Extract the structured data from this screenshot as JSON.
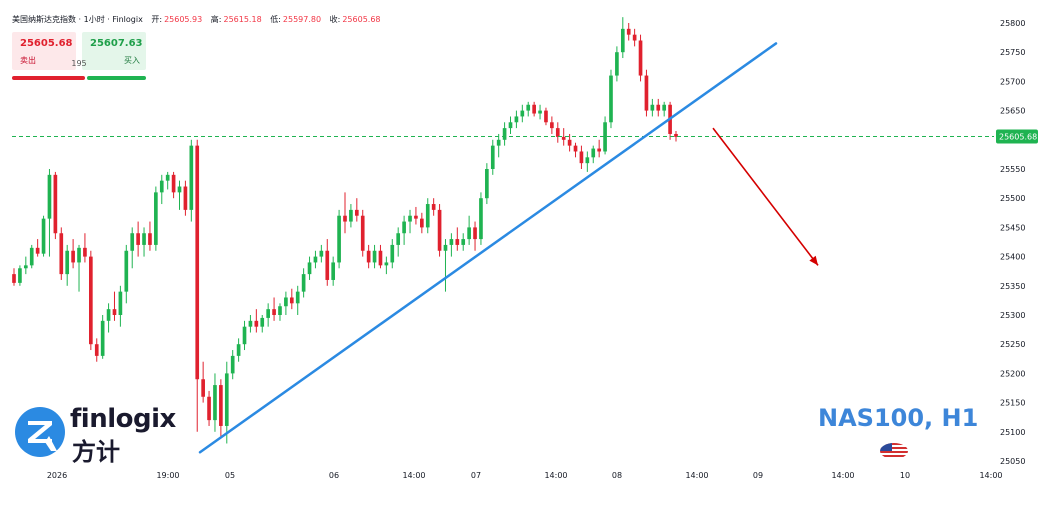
{
  "header": {
    "title": "美国纳斯达克指数 · 1小时 · Finlogix",
    "ohlc": [
      {
        "label": "开:",
        "value": "25605.93"
      },
      {
        "label": "高:",
        "value": "25615.18"
      },
      {
        "label": "低:",
        "value": "25597.80"
      },
      {
        "label": "收:",
        "value": "25605.68"
      }
    ]
  },
  "trade": {
    "sell_price": "25605.68",
    "sell_label": "卖出",
    "spread": "195",
    "buy_price": "25607.63",
    "buy_label": "买入"
  },
  "logo": {
    "word": "finlogix",
    "cn": "方计"
  },
  "symbol": "NAS100, H1",
  "colors": {
    "up": "#1fb351",
    "down": "#e0212e",
    "trendline": "#2b8ae2",
    "arrow": "#d40000",
    "price_line": "#1fb351"
  },
  "icons": {
    "flag": "us-flag-icon",
    "logo": "finlogix-logo-icon"
  },
  "chart_data": {
    "type": "candlestick",
    "timeframe": "1 hour",
    "ylim": [
      25040,
      25820
    ],
    "yticks": [
      25050,
      25100,
      25150,
      25200,
      25250,
      25300,
      25350,
      25400,
      25450,
      25500,
      25550,
      25600,
      25650,
      25700,
      25750,
      25800
    ],
    "xticks": [
      "2026",
      "19:00",
      "05",
      "06",
      "14:00",
      "07",
      "14:00",
      "08",
      "14:00",
      "09",
      "14:00",
      "10",
      "14:00"
    ],
    "current_price": 25605.68,
    "current_price_label": "25605.68",
    "candles": [
      [
        25370,
        25380,
        25350,
        25355
      ],
      [
        25355,
        25385,
        25350,
        25380
      ],
      [
        25380,
        25400,
        25370,
        25385
      ],
      [
        25385,
        25420,
        25380,
        25415
      ],
      [
        25415,
        25430,
        25400,
        25405
      ],
      [
        25405,
        25470,
        25400,
        25465
      ],
      [
        25465,
        25550,
        25400,
        25540
      ],
      [
        25540,
        25545,
        25430,
        25440
      ],
      [
        25440,
        25450,
        25360,
        25370
      ],
      [
        25370,
        25420,
        25350,
        25410
      ],
      [
        25410,
        25430,
        25380,
        25390
      ],
      [
        25390,
        25420,
        25340,
        25415
      ],
      [
        25415,
        25440,
        25390,
        25400
      ],
      [
        25400,
        25410,
        25240,
        25250
      ],
      [
        25250,
        25260,
        25220,
        25230
      ],
      [
        25230,
        25300,
        25225,
        25290
      ],
      [
        25290,
        25320,
        25270,
        25310
      ],
      [
        25310,
        25340,
        25290,
        25300
      ],
      [
        25300,
        25350,
        25280,
        25340
      ],
      [
        25340,
        25420,
        25320,
        25410
      ],
      [
        25410,
        25450,
        25380,
        25440
      ],
      [
        25440,
        25460,
        25400,
        25420
      ],
      [
        25420,
        25450,
        25400,
        25440
      ],
      [
        25440,
        25460,
        25410,
        25420
      ],
      [
        25420,
        25520,
        25410,
        25510
      ],
      [
        25510,
        25540,
        25490,
        25530
      ],
      [
        25530,
        25545,
        25515,
        25540
      ],
      [
        25540,
        25545,
        25500,
        25510
      ],
      [
        25510,
        25530,
        25480,
        25520
      ],
      [
        25520,
        25530,
        25470,
        25480
      ],
      [
        25480,
        25600,
        25460,
        25590
      ],
      [
        25590,
        25600,
        25100,
        25190
      ],
      [
        25190,
        25220,
        25150,
        25160
      ],
      [
        25160,
        25170,
        25110,
        25120
      ],
      [
        25120,
        25200,
        25100,
        25180
      ],
      [
        25180,
        25190,
        25090,
        25110
      ],
      [
        25110,
        25220,
        25080,
        25200
      ],
      [
        25200,
        25240,
        25190,
        25230
      ],
      [
        25230,
        25260,
        25220,
        25250
      ],
      [
        25250,
        25290,
        25240,
        25280
      ],
      [
        25280,
        25300,
        25270,
        25290
      ],
      [
        25290,
        25310,
        25270,
        25280
      ],
      [
        25280,
        25300,
        25270,
        25295
      ],
      [
        25295,
        25320,
        25280,
        25310
      ],
      [
        25310,
        25330,
        25290,
        25300
      ],
      [
        25300,
        25320,
        25290,
        25315
      ],
      [
        25315,
        25340,
        25300,
        25330
      ],
      [
        25330,
        25345,
        25310,
        25320
      ],
      [
        25320,
        25350,
        25300,
        25340
      ],
      [
        25340,
        25380,
        25330,
        25370
      ],
      [
        25370,
        25400,
        25360,
        25390
      ],
      [
        25390,
        25410,
        25380,
        25400
      ],
      [
        25400,
        25420,
        25390,
        25410
      ],
      [
        25410,
        25430,
        25350,
        25360
      ],
      [
        25360,
        25400,
        25350,
        25390
      ],
      [
        25390,
        25480,
        25380,
        25470
      ],
      [
        25470,
        25510,
        25440,
        25460
      ],
      [
        25460,
        25490,
        25450,
        25480
      ],
      [
        25480,
        25500,
        25460,
        25470
      ],
      [
        25470,
        25480,
        25400,
        25410
      ],
      [
        25410,
        25420,
        25380,
        25390
      ],
      [
        25390,
        25420,
        25380,
        25410
      ],
      [
        25410,
        25420,
        25380,
        25385
      ],
      [
        25385,
        25400,
        25370,
        25390
      ],
      [
        25390,
        25430,
        25380,
        25420
      ],
      [
        25420,
        25450,
        25400,
        25440
      ],
      [
        25440,
        25470,
        25420,
        25460
      ],
      [
        25460,
        25480,
        25440,
        25470
      ],
      [
        25470,
        25485,
        25455,
        25465
      ],
      [
        25465,
        25475,
        25440,
        25450
      ],
      [
        25450,
        25500,
        25440,
        25490
      ],
      [
        25490,
        25500,
        25470,
        25480
      ],
      [
        25480,
        25490,
        25400,
        25410
      ],
      [
        25410,
        25430,
        25340,
        25420
      ],
      [
        25420,
        25440,
        25400,
        25430
      ],
      [
        25430,
        25450,
        25410,
        25420
      ],
      [
        25420,
        25440,
        25410,
        25430
      ],
      [
        25430,
        25470,
        25420,
        25450
      ],
      [
        25450,
        25460,
        25410,
        25430
      ],
      [
        25430,
        25510,
        25420,
        25500
      ],
      [
        25500,
        25560,
        25490,
        25550
      ],
      [
        25550,
        25600,
        25540,
        25590
      ],
      [
        25590,
        25610,
        25570,
        25600
      ],
      [
        25600,
        25630,
        25590,
        25620
      ],
      [
        25620,
        25640,
        25610,
        25630
      ],
      [
        25630,
        25650,
        25620,
        25640
      ],
      [
        25640,
        25660,
        25630,
        25650
      ],
      [
        25650,
        25665,
        25640,
        25660
      ],
      [
        25660,
        25665,
        25640,
        25645
      ],
      [
        25645,
        25660,
        25635,
        25650
      ],
      [
        25650,
        25655,
        25625,
        25630
      ],
      [
        25630,
        25640,
        25610,
        25620
      ],
      [
        25620,
        25630,
        25595,
        25605
      ],
      [
        25605,
        25620,
        25590,
        25600
      ],
      [
        25600,
        25610,
        25580,
        25590
      ],
      [
        25590,
        25595,
        25570,
        25580
      ],
      [
        25580,
        25590,
        25550,
        25560
      ],
      [
        25560,
        25580,
        25545,
        25570
      ],
      [
        25570,
        25590,
        25560,
        25585
      ],
      [
        25585,
        25600,
        25570,
        25580
      ],
      [
        25580,
        25640,
        25575,
        25630
      ],
      [
        25630,
        25720,
        25620,
        25710
      ],
      [
        25710,
        25760,
        25700,
        25750
      ],
      [
        25750,
        25810,
        25740,
        25790
      ],
      [
        25790,
        25800,
        25770,
        25780
      ],
      [
        25780,
        25790,
        25760,
        25770
      ],
      [
        25770,
        25780,
        25700,
        25710
      ],
      [
        25710,
        25720,
        25640,
        25650
      ],
      [
        25650,
        25670,
        25640,
        25660
      ],
      [
        25660,
        25670,
        25640,
        25650
      ],
      [
        25650,
        25665,
        25640,
        25660
      ],
      [
        25660,
        25665,
        25600,
        25610
      ],
      [
        25610,
        25615,
        25597,
        25605
      ]
    ]
  }
}
